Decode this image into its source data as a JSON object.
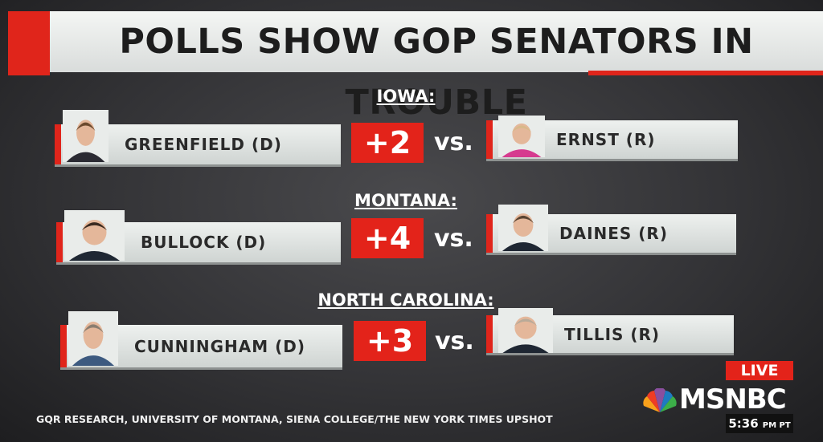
{
  "header": {
    "title": "POLLS SHOW GOP SENATORS IN TROUBLE"
  },
  "races": [
    {
      "state": "IOWA:",
      "democrat": "GREENFIELD (D)",
      "margin": "+2",
      "versus": "vs.",
      "republican": "ERNST (R)"
    },
    {
      "state": "MONTANA:",
      "democrat": "BULLOCK (D)",
      "margin": "+4",
      "versus": "vs.",
      "republican": "DAINES (R)"
    },
    {
      "state": "NORTH CAROLINA:",
      "democrat": "CUNNINGHAM (D)",
      "margin": "+3",
      "versus": "vs.",
      "republican": "TILLIS (R)"
    }
  ],
  "source": "GQR RESEARCH, UNIVERSITY OF MONTANA, SIENA COLLEGE/THE NEW YORK TIMES UPSHOT",
  "live": "LIVE",
  "network": "MSNBC",
  "clock": {
    "time": "5:36",
    "zone": "PM PT"
  }
}
